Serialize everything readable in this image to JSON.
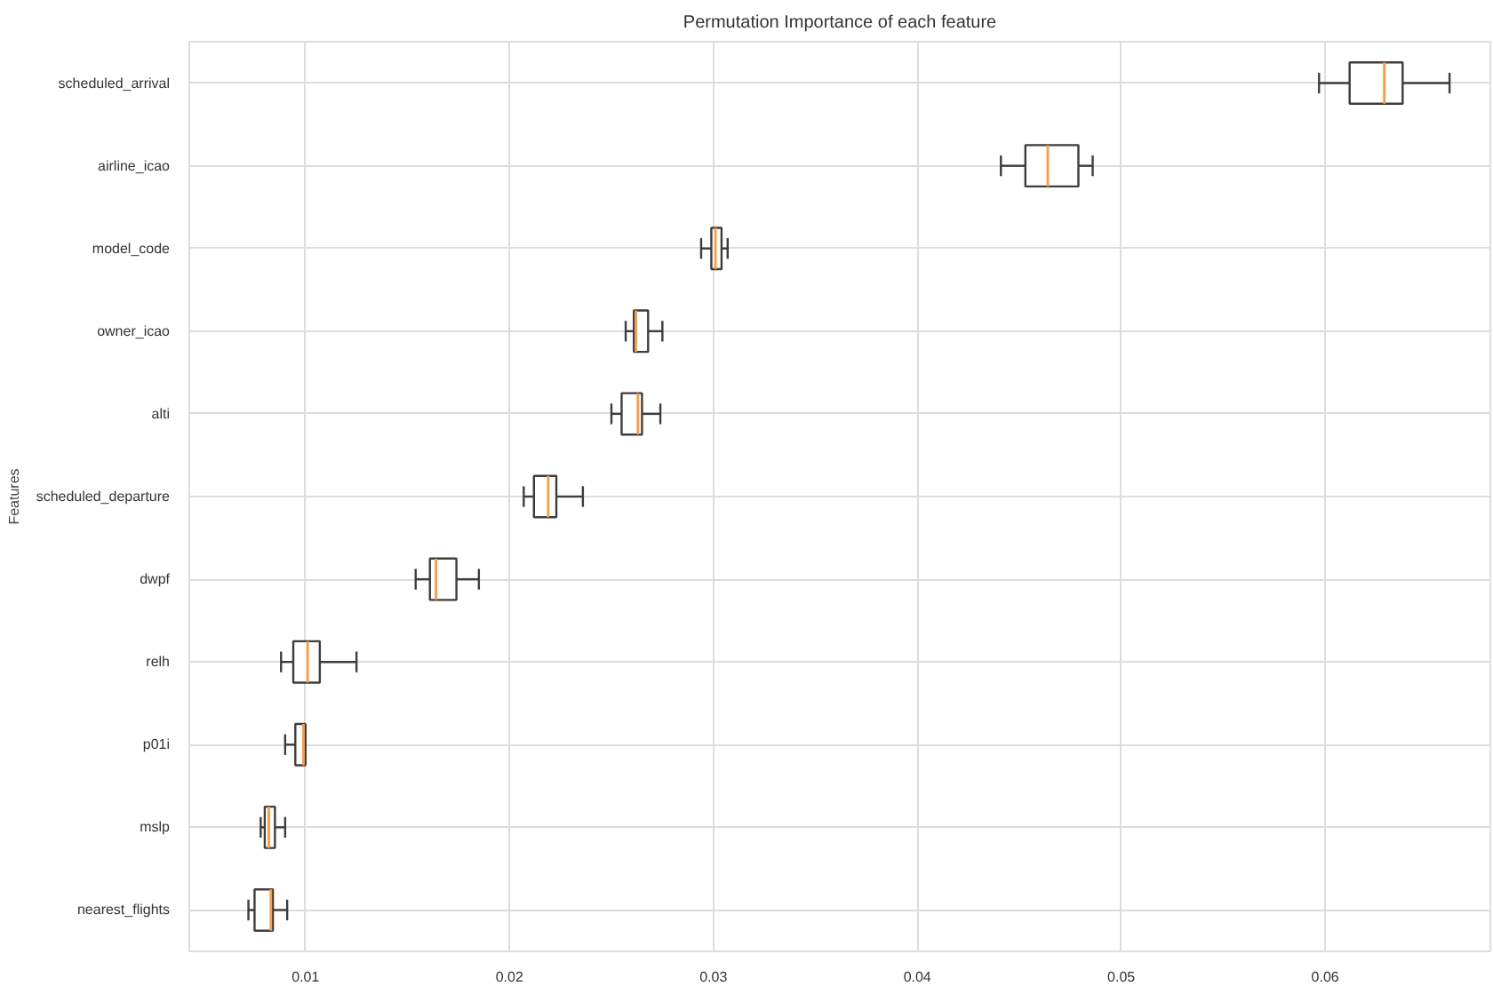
{
  "chart_data": {
    "type": "box",
    "orientation": "horizontal",
    "title": "Permutation Importance of each feature",
    "ylabel": "Features",
    "categories": [
      "scheduled_arrival",
      "airline_icao",
      "model_code",
      "owner_icao",
      "alti",
      "scheduled_departure",
      "dwpf",
      "relh",
      "p01i",
      "mslp",
      "nearest_flights"
    ],
    "boxes": [
      {
        "low": 0.0597,
        "q1": 0.0612,
        "median": 0.0629,
        "q3": 0.0638,
        "high": 0.0661
      },
      {
        "low": 0.0441,
        "q1": 0.0453,
        "median": 0.0464,
        "q3": 0.0479,
        "high": 0.0486
      },
      {
        "low": 0.0294,
        "q1": 0.0299,
        "median": 0.0301,
        "q3": 0.0304,
        "high": 0.0307
      },
      {
        "low": 0.0257,
        "q1": 0.0261,
        "median": 0.0262,
        "q3": 0.0268,
        "high": 0.0275
      },
      {
        "low": 0.025,
        "q1": 0.0255,
        "median": 0.0263,
        "q3": 0.0265,
        "high": 0.0274
      },
      {
        "low": 0.0207,
        "q1": 0.0212,
        "median": 0.0219,
        "q3": 0.0223,
        "high": 0.0236
      },
      {
        "low": 0.0154,
        "q1": 0.0161,
        "median": 0.0164,
        "q3": 0.0174,
        "high": 0.0185
      },
      {
        "low": 0.0088,
        "q1": 0.0094,
        "median": 0.0101,
        "q3": 0.0107,
        "high": 0.0125
      },
      {
        "low": 0.009,
        "q1": 0.0095,
        "median": 0.0099,
        "q3": 0.01,
        "high": 0.01
      },
      {
        "low": 0.0078,
        "q1": 0.008,
        "median": 0.0082,
        "q3": 0.0085,
        "high": 0.009
      },
      {
        "low": 0.0072,
        "q1": 0.0075,
        "median": 0.0083,
        "q3": 0.0084,
        "high": 0.0091
      }
    ],
    "xlim": [
      0.0043,
      0.0681
    ],
    "xticks": [
      0.01,
      0.02,
      0.03,
      0.04,
      0.05,
      0.06
    ],
    "grid": true
  }
}
